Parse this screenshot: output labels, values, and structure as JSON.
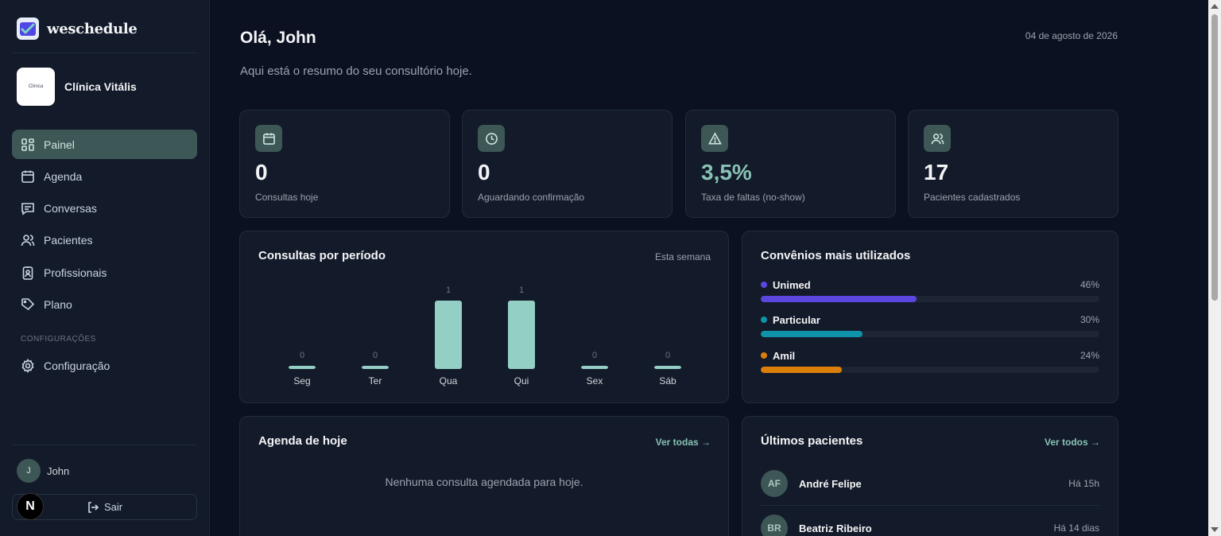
{
  "app": {
    "name": "weschedule"
  },
  "clinic": {
    "name": "Clínica Vitális",
    "logo_text": "Clínica"
  },
  "nav": {
    "items": [
      {
        "label": "Painel",
        "icon": "dashboard-icon",
        "active": true
      },
      {
        "label": "Agenda",
        "icon": "calendar-icon",
        "active": false
      },
      {
        "label": "Conversas",
        "icon": "chat-icon",
        "active": false
      },
      {
        "label": "Pacientes",
        "icon": "users-icon",
        "active": false
      },
      {
        "label": "Profissionais",
        "icon": "badge-icon",
        "active": false
      },
      {
        "label": "Plano",
        "icon": "tag-icon",
        "active": false
      }
    ],
    "section_label": "CONFIGURAÇÕES",
    "config_item": {
      "label": "Configuração",
      "icon": "gear-icon"
    }
  },
  "user": {
    "initial": "J",
    "name": "John"
  },
  "logout": {
    "label": "Sair"
  },
  "next_badge": {
    "label": "N"
  },
  "header": {
    "greeting": "Olá, John",
    "date": "04 de agosto de 2026",
    "subtitle": "Aqui está o resumo do seu consultório hoje."
  },
  "stats": [
    {
      "value": "0",
      "label": "Consultas hoje",
      "icon": "calendar-icon"
    },
    {
      "value": "0",
      "label": "Aguardando confirmação",
      "icon": "clock-icon"
    },
    {
      "value": "3,5%",
      "label": "Taxa de faltas (no-show)",
      "icon": "warning-icon",
      "accent": "#88c2b5"
    },
    {
      "value": "17",
      "label": "Pacientes cadastrados",
      "icon": "users-icon"
    }
  ],
  "consultas": {
    "title": "Consultas por período",
    "period": "Esta semana",
    "chart_data": {
      "type": "bar",
      "categories": [
        "Seg",
        "Ter",
        "Qua",
        "Qui",
        "Sex",
        "Sáb"
      ],
      "values": [
        0,
        0,
        1,
        1,
        0,
        0
      ],
      "data_labels": [
        "0",
        "0",
        "1",
        "1",
        "0",
        "0"
      ],
      "title": "Consultas por período",
      "xlabel": "",
      "ylabel": "",
      "ylim": [
        0,
        1
      ],
      "color": "#94cfc5"
    }
  },
  "convenios": {
    "title": "Convênios mais utilizados",
    "items": [
      {
        "name": "Unimed",
        "pct_label": "46%",
        "pct": 46,
        "color": "#5b47e0"
      },
      {
        "name": "Particular",
        "pct_label": "30%",
        "pct": 30,
        "color": "#0e93ab"
      },
      {
        "name": "Amil",
        "pct_label": "24%",
        "pct": 24,
        "color": "#d97f0a"
      }
    ]
  },
  "agenda_hoje": {
    "title": "Agenda de hoje",
    "link": "Ver todas →",
    "empty": "Nenhuma consulta agendada para hoje."
  },
  "ultimos_pacientes": {
    "title": "Últimos pacientes",
    "link": "Ver todos →",
    "items": [
      {
        "initials": "AF",
        "name": "André Felipe",
        "time": "Há 15h"
      },
      {
        "initials": "BR",
        "name": "Beatriz Ribeiro",
        "time": "Há 14 dias"
      }
    ]
  }
}
